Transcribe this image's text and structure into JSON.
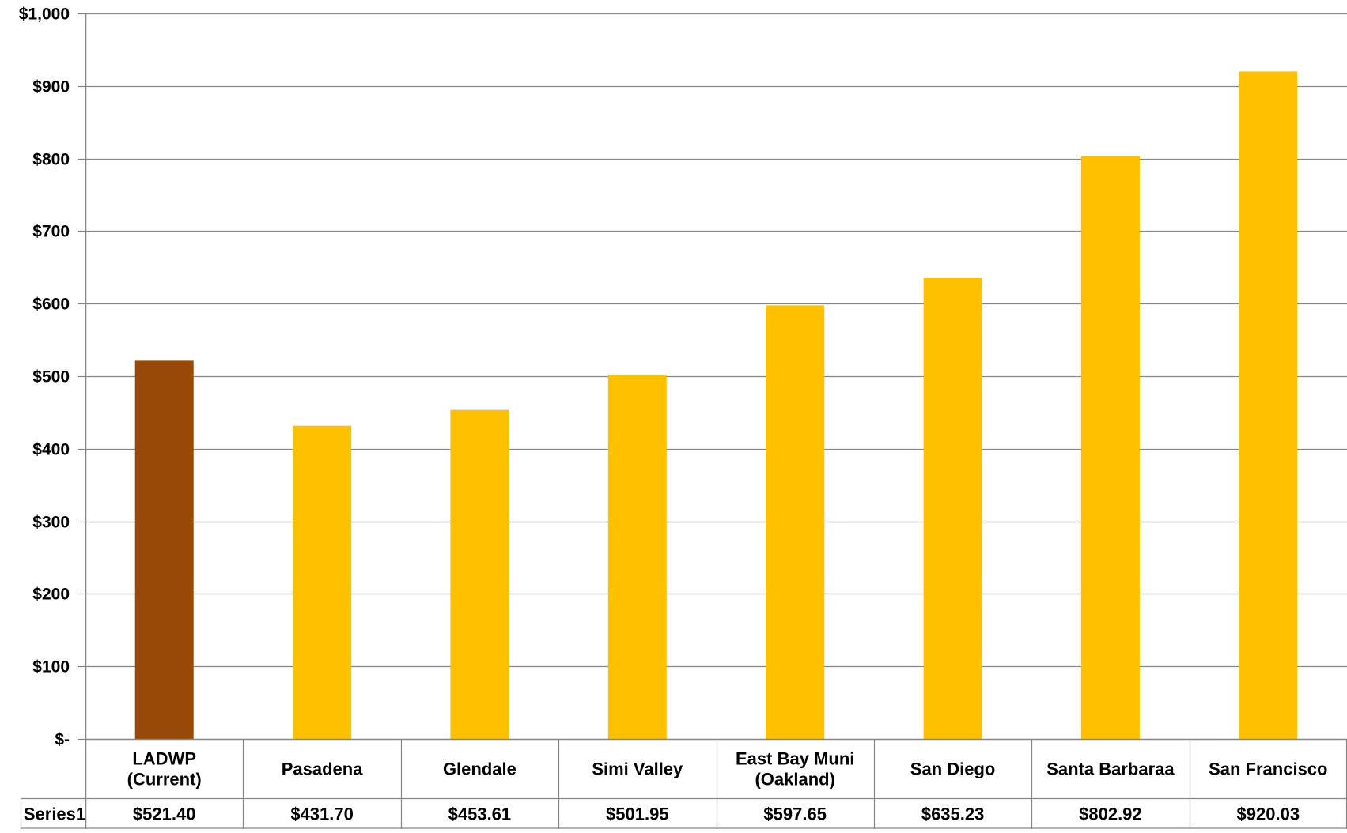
{
  "chart_data": {
    "type": "bar",
    "title": "",
    "xlabel": "",
    "ylabel": "",
    "categories": [
      [
        "LADWP",
        "(Current)"
      ],
      [
        "Pasadena"
      ],
      [
        "Glendale"
      ],
      [
        "Simi Valley"
      ],
      [
        "East Bay Muni",
        "(Oakland)"
      ],
      [
        "San Diego"
      ],
      [
        "Santa Barbaraa"
      ],
      [
        "San Francisco"
      ]
    ],
    "series": [
      {
        "name": "Series1",
        "values": [
          521.4,
          431.7,
          453.61,
          501.95,
          597.65,
          635.23,
          802.92,
          920.03
        ],
        "value_labels": [
          "$521.40",
          "$431.70",
          "$453.61",
          "$501.95",
          "$597.65",
          "$635.23",
          "$802.92",
          "$920.03"
        ]
      }
    ],
    "ylim": [
      0,
      1000
    ],
    "yticks": [
      0,
      100,
      200,
      300,
      400,
      500,
      600,
      700,
      800,
      900,
      1000
    ],
    "ytick_labels": [
      "$-",
      "$100",
      "$200",
      "$300",
      "$400",
      "$500",
      "$600",
      "$700",
      "$800",
      "$900",
      "$1,000"
    ],
    "grid": true,
    "legend": "none",
    "data_table": true,
    "colors": {
      "highlight_bar": "#984807",
      "default_bar": "#FFC000",
      "gridline": "#868686",
      "axis": "#868686"
    },
    "highlight_index": 0
  }
}
